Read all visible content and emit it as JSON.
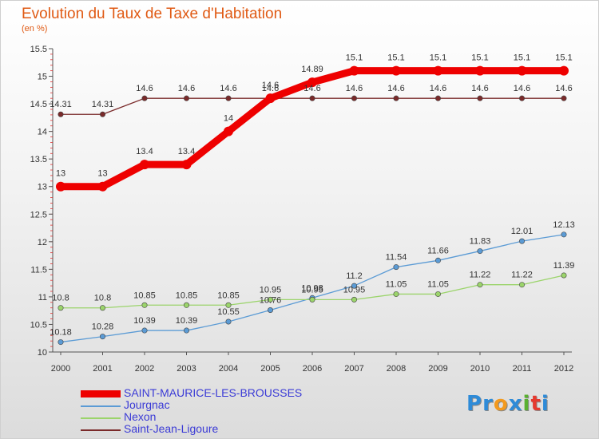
{
  "title": "Evolution du Taux de Taxe d'Habitation",
  "subtitle": "(en %)",
  "logo": {
    "letters": [
      "P",
      "r",
      "o",
      "x",
      "i",
      "t",
      "i"
    ],
    "colors": [
      "#2e8bd8",
      "#2e8bd8",
      "#f39a1e",
      "#2e8bd8",
      "#5ab030",
      "#e53a30",
      "#2e8bd8"
    ]
  },
  "chart_data": {
    "type": "line",
    "x": [
      "2000",
      "2001",
      "2002",
      "2003",
      "2004",
      "2005",
      "2006",
      "2007",
      "2008",
      "2009",
      "2010",
      "2011",
      "2012"
    ],
    "ylim": [
      10,
      15.5
    ],
    "yticks": [
      "10",
      "10.5",
      "11",
      "11.5",
      "12",
      "12.5",
      "13",
      "13.5",
      "14",
      "14.5",
      "15",
      "15.5"
    ],
    "grid": false,
    "legend_position": "bottom-left",
    "series": [
      {
        "name": "SAINT-MAURICE-LES-BROUSSES",
        "color": "#ee0000",
        "width": 9,
        "values": [
          13,
          13,
          13.4,
          13.4,
          14,
          14.6,
          14.89,
          15.1,
          15.1,
          15.1,
          15.1,
          15.1,
          15.1
        ],
        "labels": [
          "13",
          "13",
          "13.4",
          "13.4",
          "14",
          "14.6",
          "14.89",
          "15.1",
          "15.1",
          "15.1",
          "15.1",
          "15.1",
          "15.1"
        ]
      },
      {
        "name": "Jourgnac",
        "color": "#5b9bd5",
        "width": 1.3,
        "values": [
          10.18,
          10.28,
          10.39,
          10.39,
          10.55,
          10.76,
          10.98,
          11.2,
          11.54,
          11.66,
          11.83,
          12.01,
          12.13
        ],
        "labels": [
          "10.18",
          "10.28",
          "10.39",
          "10.39",
          "10.55",
          "10.76",
          "10.98",
          "11.2",
          "11.54",
          "11.66",
          "11.83",
          "12.01",
          "12.13"
        ]
      },
      {
        "name": "Nexon",
        "color": "#9bd46b",
        "width": 1.3,
        "values": [
          10.8,
          10.8,
          10.85,
          10.85,
          10.85,
          10.95,
          10.95,
          10.95,
          11.05,
          11.05,
          11.22,
          11.22,
          11.39
        ],
        "labels": [
          "10.8",
          "10.8",
          "10.85",
          "10.85",
          "10.85",
          "10.95",
          "10.95",
          "10.95",
          "11.05",
          "11.05",
          "11.22",
          "11.22",
          "11.39"
        ]
      },
      {
        "name": "Saint-Jean-Ligoure",
        "color": "#7a2a2a",
        "width": 1.3,
        "values": [
          14.31,
          14.31,
          14.6,
          14.6,
          14.6,
          14.6,
          14.6,
          14.6,
          14.6,
          14.6,
          14.6,
          14.6,
          14.6
        ],
        "labels": [
          "14.31",
          "14.31",
          "14.6",
          "14.6",
          "14.6",
          "14.6",
          "14.6",
          "14.6",
          "14.6",
          "14.6",
          "14.6",
          "14.6",
          "14.6"
        ]
      }
    ]
  }
}
